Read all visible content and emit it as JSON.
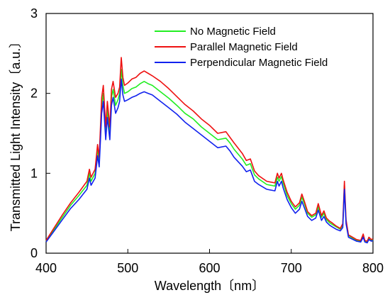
{
  "chart_data": {
    "type": "line",
    "title": "",
    "xlabel": "Wavelength〔nm〕",
    "ylabel": "Transmitted Light Intensity〔a.u.〕",
    "xlim": [
      400,
      800
    ],
    "ylim": [
      0,
      3
    ],
    "xticks": [
      400,
      500,
      600,
      700,
      800
    ],
    "yticks": [
      0,
      1,
      2,
      3
    ],
    "grid": false,
    "legend_position": "top-right",
    "x": [
      400,
      410,
      420,
      430,
      440,
      450,
      453,
      455,
      460,
      463,
      465,
      468,
      470,
      473,
      475,
      478,
      480,
      482,
      485,
      488,
      490,
      492,
      494,
      496,
      500,
      505,
      510,
      515,
      520,
      525,
      530,
      540,
      550,
      560,
      570,
      580,
      590,
      600,
      610,
      620,
      625,
      630,
      640,
      645,
      650,
      655,
      660,
      670,
      680,
      683,
      685,
      688,
      690,
      695,
      700,
      705,
      710,
      713,
      716,
      720,
      725,
      730,
      733,
      737,
      740,
      743,
      747,
      750,
      755,
      760,
      763,
      765,
      767,
      770,
      780,
      785,
      788,
      790,
      793,
      795,
      798,
      800
    ],
    "series": [
      {
        "name": "No Magnetic Field",
        "color": "#22ee22",
        "values": [
          0.15,
          0.3,
          0.45,
          0.6,
          0.72,
          0.85,
          1.0,
          0.9,
          1.0,
          1.3,
          1.15,
          1.85,
          2.0,
          1.5,
          1.8,
          1.5,
          1.95,
          2.05,
          1.85,
          1.92,
          2.0,
          2.3,
          2.1,
          2.0,
          2.02,
          2.06,
          2.08,
          2.12,
          2.15,
          2.12,
          2.1,
          2.02,
          1.94,
          1.85,
          1.75,
          1.68,
          1.58,
          1.5,
          1.42,
          1.44,
          1.38,
          1.3,
          1.18,
          1.1,
          1.12,
          0.98,
          0.93,
          0.86,
          0.84,
          0.95,
          0.9,
          0.96,
          0.88,
          0.72,
          0.62,
          0.55,
          0.6,
          0.7,
          0.62,
          0.5,
          0.45,
          0.48,
          0.58,
          0.45,
          0.5,
          0.42,
          0.38,
          0.36,
          0.33,
          0.3,
          0.35,
          0.85,
          0.4,
          0.22,
          0.16,
          0.15,
          0.22,
          0.15,
          0.14,
          0.18,
          0.16,
          0.17
        ]
      },
      {
        "name": "Parallel Magnetic Field",
        "color": "#ee1111",
        "values": [
          0.16,
          0.32,
          0.48,
          0.63,
          0.76,
          0.9,
          1.05,
          0.95,
          1.05,
          1.36,
          1.2,
          1.95,
          2.1,
          1.58,
          1.9,
          1.58,
          2.05,
          2.15,
          1.95,
          2.0,
          2.08,
          2.45,
          2.2,
          2.1,
          2.13,
          2.18,
          2.2,
          2.25,
          2.28,
          2.25,
          2.22,
          2.15,
          2.06,
          1.96,
          1.86,
          1.78,
          1.68,
          1.6,
          1.5,
          1.52,
          1.45,
          1.38,
          1.25,
          1.16,
          1.18,
          1.03,
          0.97,
          0.9,
          0.88,
          1.0,
          0.94,
          1.0,
          0.92,
          0.76,
          0.65,
          0.58,
          0.63,
          0.74,
          0.65,
          0.52,
          0.47,
          0.5,
          0.62,
          0.47,
          0.53,
          0.44,
          0.4,
          0.38,
          0.34,
          0.31,
          0.37,
          0.9,
          0.42,
          0.23,
          0.17,
          0.16,
          0.24,
          0.16,
          0.15,
          0.2,
          0.17,
          0.18
        ]
      },
      {
        "name": "Perpendicular Magnetic Field",
        "color": "#1122ee",
        "values": [
          0.14,
          0.28,
          0.42,
          0.56,
          0.67,
          0.8,
          0.94,
          0.85,
          0.94,
          1.22,
          1.08,
          1.75,
          1.9,
          1.42,
          1.7,
          1.42,
          1.85,
          1.95,
          1.75,
          1.82,
          1.9,
          2.18,
          1.98,
          1.9,
          1.92,
          1.95,
          1.97,
          2.0,
          2.02,
          2.0,
          1.98,
          1.9,
          1.82,
          1.74,
          1.64,
          1.56,
          1.48,
          1.4,
          1.32,
          1.34,
          1.28,
          1.2,
          1.09,
          1.02,
          1.04,
          0.9,
          0.86,
          0.8,
          0.78,
          0.9,
          0.84,
          0.9,
          0.82,
          0.67,
          0.57,
          0.5,
          0.55,
          0.65,
          0.57,
          0.46,
          0.41,
          0.44,
          0.54,
          0.41,
          0.46,
          0.39,
          0.35,
          0.33,
          0.3,
          0.28,
          0.32,
          0.8,
          0.37,
          0.2,
          0.15,
          0.14,
          0.2,
          0.14,
          0.13,
          0.17,
          0.15,
          0.16
        ]
      }
    ]
  }
}
